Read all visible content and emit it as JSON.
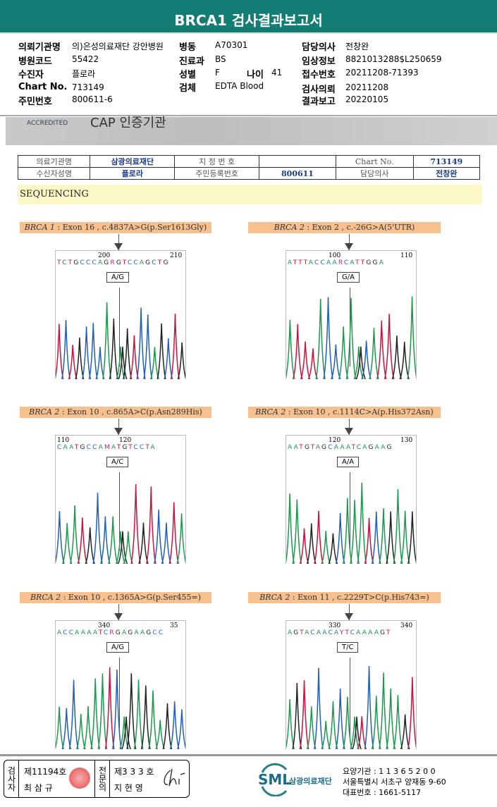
{
  "title": "BRCA1 검사결과보고서",
  "info": {
    "institution_label": "의뢰기관명",
    "institution": "의)은성의료재단 강안병원",
    "hospital_code_label": "병원코드",
    "hospital_code": "55422",
    "patient_label": "수진자",
    "patient": "플로라",
    "chart_label": "Chart No.",
    "chart": "713149",
    "rrn_label": "주민번호",
    "rrn": "800611-6",
    "ward_label": "병동",
    "ward": "A70301",
    "dept_label": "진료과",
    "dept": "BS",
    "sex_label": "성별",
    "sex": "F",
    "age_label": "나이",
    "age": "41",
    "specimen_label": "검체",
    "specimen": "EDTA Blood",
    "doctor_label": "담당의사",
    "doctor": "전창완",
    "clinical_label": "임상정보",
    "clinical": "8821013288$L250659",
    "receipt_label": "접수번호",
    "receipt": "20211208-71393",
    "request_label": "검사의뢰",
    "request": "20211208",
    "report_label": "결과보고",
    "report": "20220105"
  },
  "banner": {
    "accredited": "ACCREDITED",
    "cap": "CAP 인증기관"
  },
  "table": {
    "r1": [
      "의료기관명",
      "삼광의료재단",
      "지 정 번 호",
      "",
      "Chart No.",
      "713149"
    ],
    "r2": [
      "수신자성명",
      "플로라",
      "주민등록번호",
      "800611",
      "담당의사",
      "전창완"
    ]
  },
  "section": "SEQUENCING",
  "variants": [
    {
      "gene": "BRCA 1",
      "desc": " : Exon 16 , c.4837A>G(p.Ser1613Gly)",
      "pos1": "200",
      "pos2": "210",
      "seq": "TCTGCCCAGRGTCCAGCTG",
      "call": "A/G"
    },
    {
      "gene": "BRCA 2",
      "desc": " : Exon 2 , c.-26G>A(5'UTR)",
      "pos1": "100",
      "pos2": "110",
      "seq": "ATTTACCAARCATTGGA",
      "call": "G/A"
    },
    {
      "gene": "BRCA 2",
      "desc": " : Exon 10 , c.865A>C(p.Asn289His)",
      "pos1": "110",
      "pos2": "120",
      "seq": "CAATGCCAMATGTCCTA",
      "call": "A/C"
    },
    {
      "gene": "BRCA 2",
      "desc": " : Exon 10 , c.1114C>A(p.His372Asn)",
      "pos1": "120",
      "pos2": "130",
      "seq": "AATGTAGCAAATCAGAAG",
      "call": "A/A"
    },
    {
      "gene": "BRCA 2",
      "desc": " : Exon 10 , c.1365A>G(p.Ser455=)",
      "pos1": "340",
      "pos2": "35",
      "seq": "ACCAAAATCRGAGAAGCC",
      "call": "A/G"
    },
    {
      "gene": "BRCA 2",
      "desc": " : Exon 11 , c.2229T>C(p.His743=)",
      "pos1": "330",
      "pos2": "340",
      "seq": "AGTACAACAYTCAAAAGT",
      "call": "T/C"
    }
  ],
  "footer": {
    "examiner_label": "검사자",
    "examiner_no": "제11194호",
    "examiner_name": "최 삼 규",
    "specialist_label": "전문의",
    "specialist_no": "제3 3 3 호",
    "specialist_name": "지 현 영",
    "logo": "SML",
    "org": "삼광의료재단",
    "code": "요양기관 : 1 1 3 6 5 2 0 0",
    "address": "서울특별시 서초구 양재동 9-60",
    "phone": "대표번호 : 1661-5117"
  },
  "colors": {
    "header": "#137c73",
    "A": "#1a9a4a",
    "C": "#1f5fbf",
    "G": "#222222",
    "T": "#d0103a"
  }
}
